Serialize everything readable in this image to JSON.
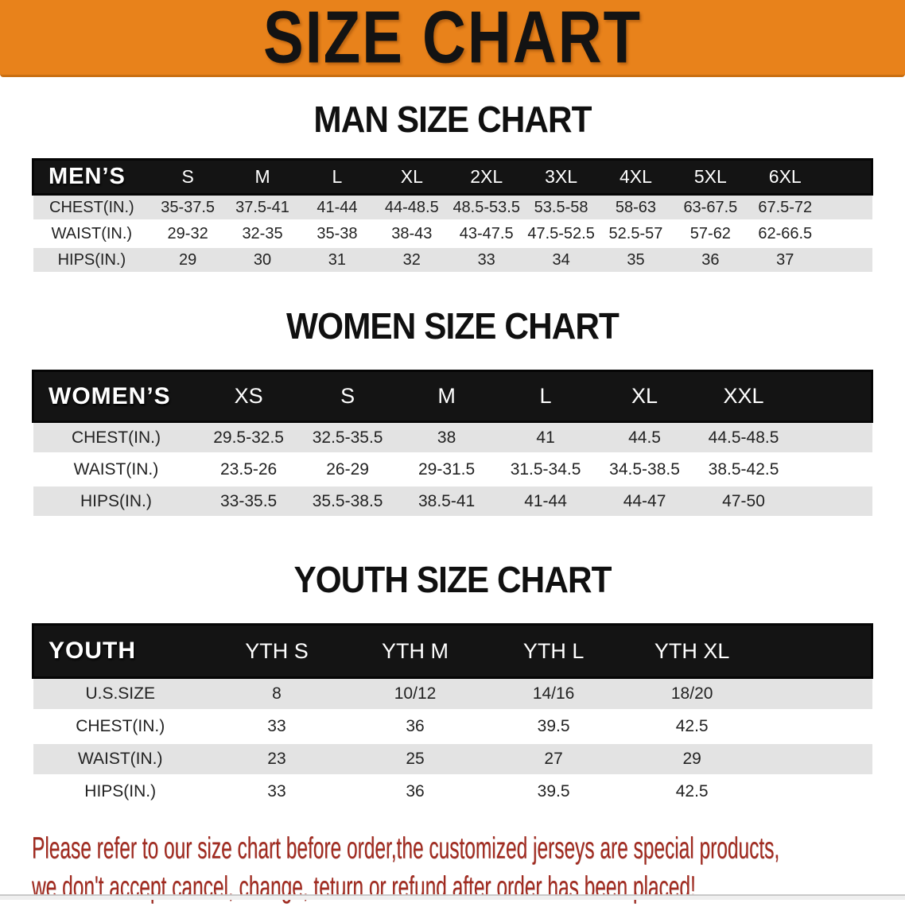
{
  "banner": {
    "title": "SIZE CHART"
  },
  "colors": {
    "banner_bg": "#E8821B",
    "banner_text": "#131313",
    "header_bg": "#141414",
    "row_alt_bg": "#E3E3E3",
    "disclaimer_color": "#A12B20"
  },
  "sections": [
    {
      "title": "MAN SIZE CHART",
      "header_label": "MEN’S",
      "columns": [
        "S",
        "M",
        "L",
        "XL",
        "2XL",
        "3XL",
        "4XL",
        "5XL",
        "6XL"
      ],
      "rows": [
        {
          "label": "CHEST(IN.)",
          "values": [
            "35-37.5",
            "37.5-41",
            "41-44",
            "44-48.5",
            "48.5-53.5",
            "53.5-58",
            "58-63",
            "63-67.5",
            "67.5-72"
          ]
        },
        {
          "label": "WAIST(IN.)",
          "values": [
            "29-32",
            "32-35",
            "35-38",
            "38-43",
            "43-47.5",
            "47.5-52.5",
            "52.5-57",
            "57-62",
            "62-66.5"
          ]
        },
        {
          "label": "HIPS(IN.)",
          "values": [
            "29",
            "30",
            "31",
            "32",
            "33",
            "34",
            "35",
            "36",
            "37"
          ]
        }
      ]
    },
    {
      "title": "WOMEN SIZE CHART",
      "header_label": "WOMEN’S",
      "columns": [
        "XS",
        "S",
        "M",
        "L",
        "XL",
        "XXL"
      ],
      "rows": [
        {
          "label": "CHEST(IN.)",
          "values": [
            "29.5-32.5",
            "32.5-35.5",
            "38",
            "41",
            "44.5",
            "44.5-48.5"
          ]
        },
        {
          "label": "WAIST(IN.)",
          "values": [
            "23.5-26",
            "26-29",
            "29-31.5",
            "31.5-34.5",
            "34.5-38.5",
            "38.5-42.5"
          ]
        },
        {
          "label": "HIPS(IN.)",
          "values": [
            "33-35.5",
            "35.5-38.5",
            "38.5-41",
            "41-44",
            "44-47",
            "47-50"
          ]
        }
      ]
    },
    {
      "title": "YOUTH SIZE CHART",
      "header_label": "YOUTH",
      "columns": [
        "YTH S",
        "YTH M",
        "YTH L",
        "YTH XL"
      ],
      "rows": [
        {
          "label": "U.S.SIZE",
          "values": [
            "8",
            "10/12",
            "14/16",
            "18/20"
          ]
        },
        {
          "label": "CHEST(IN.)",
          "values": [
            "33",
            "36",
            "39.5",
            "42.5"
          ]
        },
        {
          "label": "WAIST(IN.)",
          "values": [
            "23",
            "25",
            "27",
            "29"
          ]
        },
        {
          "label": "HIPS(IN.)",
          "values": [
            "33",
            "36",
            "39.5",
            "42.5"
          ]
        }
      ]
    }
  ],
  "disclaimer": {
    "lines": [
      "Please refer to our size chart before order,the customized jerseys are special products,",
      "we don't accept cancel, change, teturn or refund after order has been placed!"
    ]
  }
}
